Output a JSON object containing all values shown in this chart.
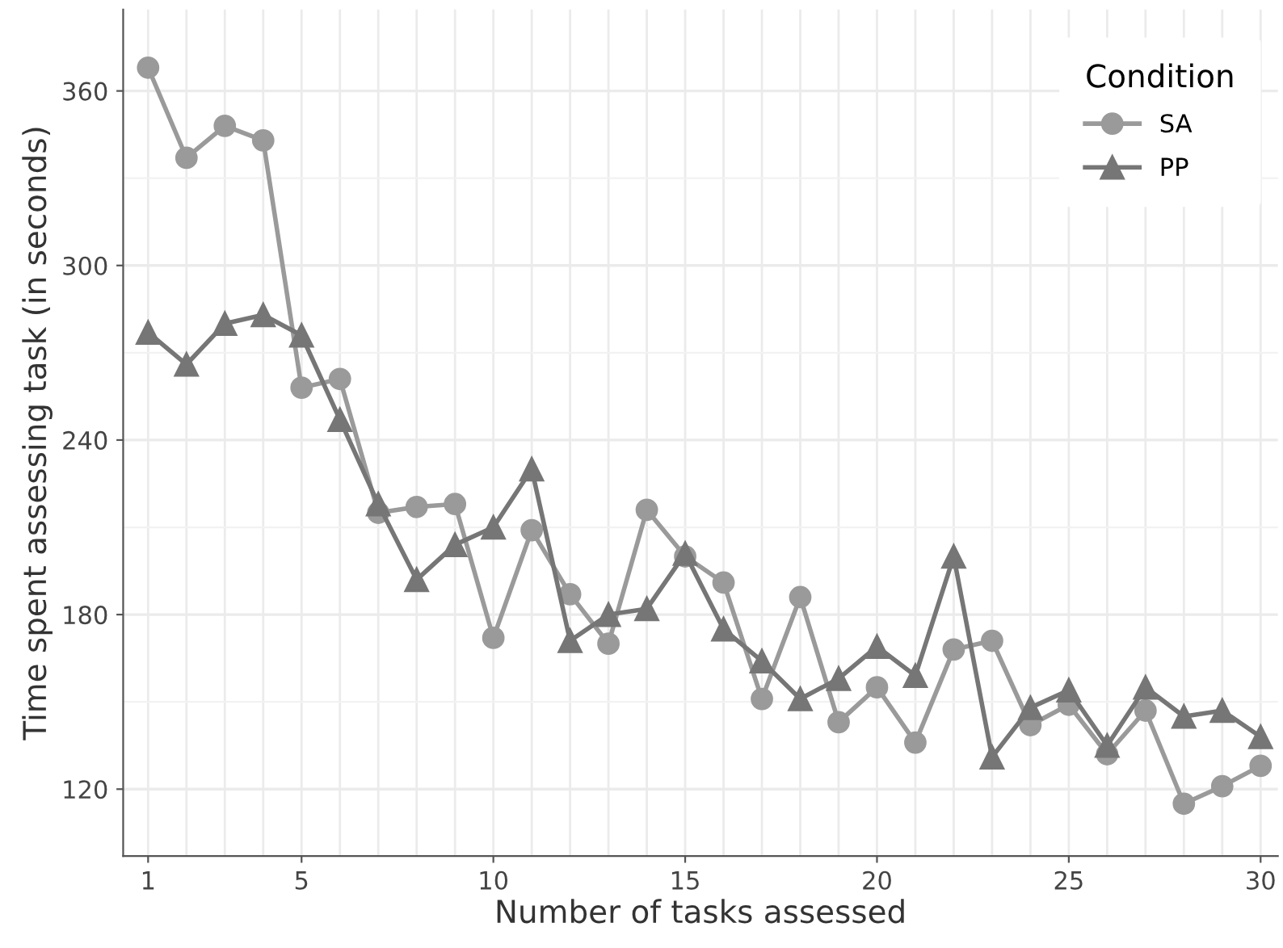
{
  "chart_data": {
    "type": "line",
    "xlabel": "Number of tasks assessed",
    "ylabel": "Time spent assessing task (in seconds)",
    "legend_title": "Condition",
    "x": [
      1,
      2,
      3,
      4,
      5,
      6,
      7,
      8,
      9,
      10,
      11,
      12,
      13,
      14,
      15,
      16,
      17,
      18,
      19,
      20,
      21,
      22,
      23,
      24,
      25,
      26,
      27,
      28,
      29,
      30
    ],
    "series": [
      {
        "name": "SA",
        "color": "#9a9a9a",
        "marker": "circle",
        "values": [
          368,
          337,
          348,
          343,
          258,
          261,
          215,
          217,
          218,
          172,
          209,
          187,
          170,
          216,
          200,
          191,
          151,
          186,
          143,
          155,
          136,
          168,
          171,
          142,
          149,
          132,
          147,
          115,
          121,
          128
        ]
      },
      {
        "name": "PP",
        "color": "#767676",
        "marker": "triangle",
        "values": [
          277,
          266,
          280,
          283,
          276,
          247,
          218,
          192,
          204,
          210,
          230,
          171,
          180,
          182,
          201,
          175,
          164,
          151,
          158,
          169,
          159,
          200,
          131,
          148,
          154,
          135,
          155,
          145,
          147,
          138
        ]
      }
    ],
    "xlim": [
      0.35,
      30.45
    ],
    "ylim": [
      97,
      388
    ],
    "xticks": [
      1,
      5,
      10,
      15,
      20,
      25,
      30
    ],
    "yticks": [
      120,
      180,
      240,
      300,
      360
    ],
    "grid": true,
    "legend": "top right",
    "line_style": "solid"
  }
}
